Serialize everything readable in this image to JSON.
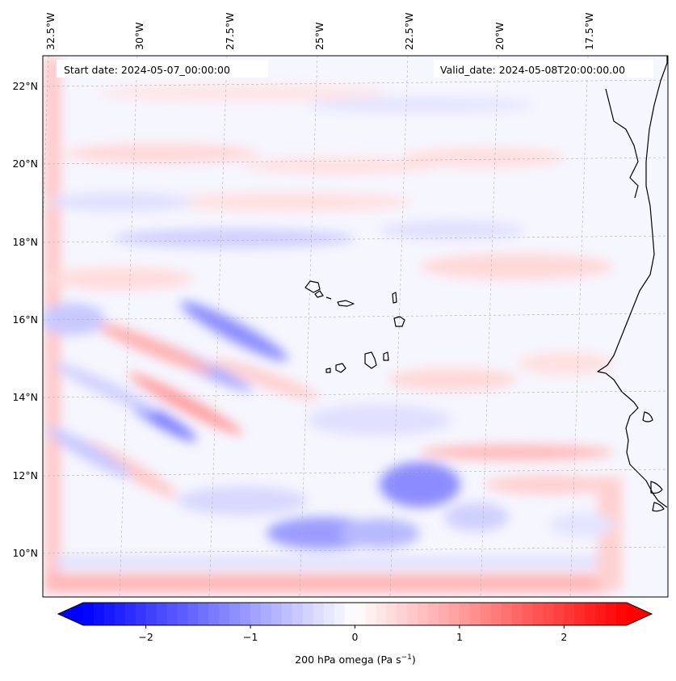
{
  "header": {
    "start_date": "Start date: 2024-05-07_00:00:00",
    "valid_date": "Valid_date: 2024-05-08T20:00:00.00"
  },
  "axes": {
    "lon_labels": [
      "32.5°W",
      "30°W",
      "27.5°W",
      "25°W",
      "22.5°W",
      "20°W",
      "17.5°W"
    ],
    "lat_labels": [
      "22°N",
      "20°N",
      "18°N",
      "16°N",
      "14°N",
      "12°N",
      "10°N"
    ]
  },
  "colorbar": {
    "tick_labels": [
      "−2",
      "−1",
      "0",
      "1",
      "2"
    ],
    "label_main": "200 hPa omega (Pa s",
    "label_sup": "−1",
    "label_end": ")",
    "range": [
      -2.6,
      2.6
    ],
    "extend": "both",
    "colormap": "bwr",
    "colors": {
      "min": "#0000ff",
      "mid": "#ffffff",
      "max": "#ff0000"
    }
  },
  "colors": {
    "coastline": "#000000",
    "gridline": "#b0b0b0"
  }
}
